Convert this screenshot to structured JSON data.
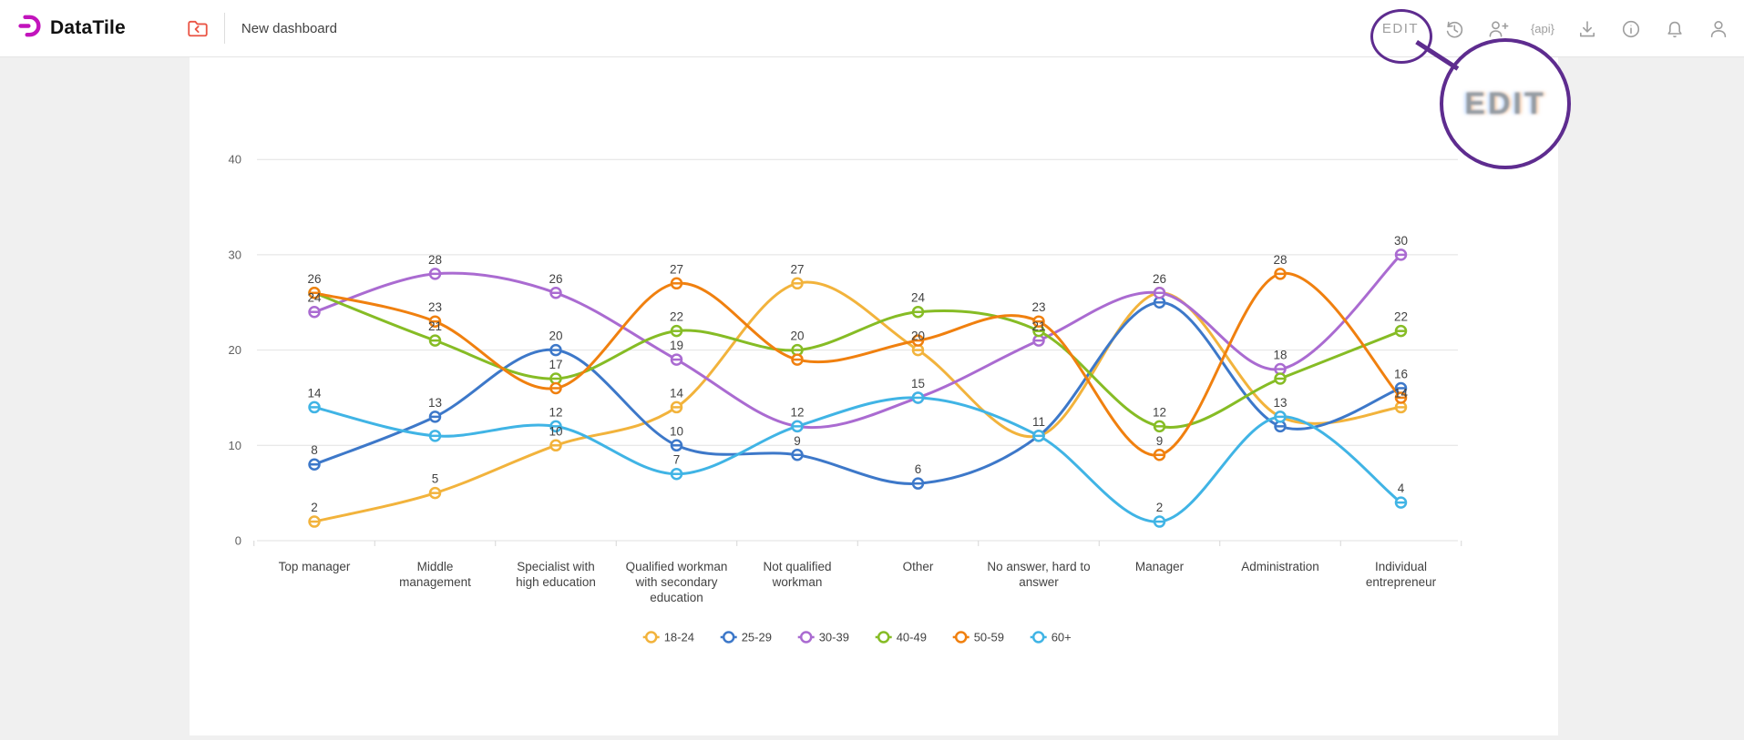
{
  "page": {
    "background": "#F0F0F0",
    "card_background": "#FFFFFF"
  },
  "header": {
    "logo_text": "DataTile",
    "title": "New dashboard",
    "edit_button": "EDIT",
    "api_icon_text": "{api}",
    "icons": [
      "history",
      "add-user",
      "api",
      "download",
      "info",
      "notifications",
      "account"
    ],
    "icon_color": "#9E9E9E",
    "logo_color": "#C214BC",
    "folder_icon_color": "#EA5545"
  },
  "annotation": {
    "magnified_label": "EDIT",
    "color": "#5E2C8F"
  },
  "chart_data": {
    "type": "line",
    "title": "",
    "xlabel": "",
    "ylabel": "",
    "yticks": [
      0,
      10,
      20,
      30,
      40
    ],
    "ylim": [
      0,
      42
    ],
    "grid": true,
    "legend_position": "bottom",
    "categories": [
      "Top manager",
      "Middle management",
      "Specialist with high education",
      "Qualified workman with secondary education",
      "Not qualified workman",
      "Other",
      "No answer, hard to answer",
      "Manager",
      "Administration",
      "Individual entrepreneur"
    ],
    "category_label_lines": [
      [
        "Top manager"
      ],
      [
        "Middle",
        "management"
      ],
      [
        "Specialist with",
        "high education"
      ],
      [
        "Qualified workman",
        "with secondary",
        "education"
      ],
      [
        "Not qualified",
        "workman"
      ],
      [
        "Other"
      ],
      [
        "No answer, hard to",
        "answer"
      ],
      [
        "Manager"
      ],
      [
        "Administration"
      ],
      [
        "Individual",
        "entrepreneur"
      ]
    ],
    "series": [
      {
        "name": "18-24",
        "color": "#F2B33C",
        "values": [
          2,
          5,
          10,
          14,
          27,
          20,
          11,
          26,
          13,
          14
        ],
        "hidden_labels": [
          6,
          7,
          8
        ]
      },
      {
        "name": "25-29",
        "color": "#3D78C9",
        "values": [
          8,
          13,
          20,
          10,
          9,
          6,
          11,
          25,
          12,
          16
        ],
        "hidden_labels": [
          7,
          8
        ]
      },
      {
        "name": "30-39",
        "color": "#AA6BD1",
        "values": [
          24,
          28,
          26,
          19,
          12,
          15,
          21,
          26,
          18,
          30
        ],
        "hidden_labels": []
      },
      {
        "name": "40-49",
        "color": "#86BC25",
        "values": [
          26,
          21,
          17,
          22,
          20,
          24,
          22,
          12,
          17,
          22
        ],
        "hidden_labels": [
          0,
          6,
          8
        ]
      },
      {
        "name": "50-59",
        "color": "#F0800F",
        "values": [
          26,
          23,
          16,
          27,
          19,
          21,
          23,
          9,
          28,
          15
        ],
        "hidden_labels": [
          2,
          4,
          5,
          9
        ]
      },
      {
        "name": "60+",
        "color": "#40B4E5",
        "values": [
          14,
          11,
          12,
          7,
          12,
          15,
          11,
          2,
          13,
          4
        ],
        "hidden_labels": [
          1,
          4,
          5,
          6
        ]
      }
    ]
  }
}
